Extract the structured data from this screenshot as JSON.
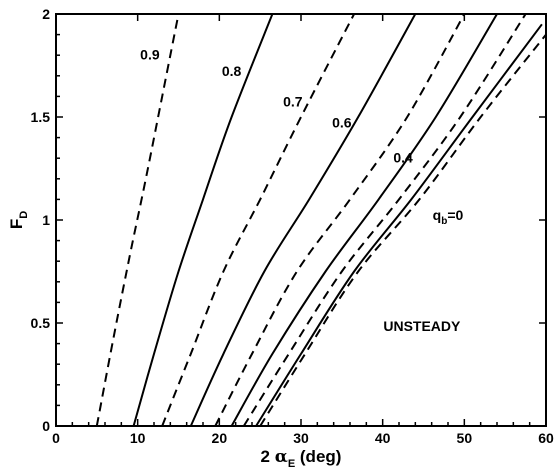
{
  "chart_data": {
    "type": "line",
    "title": "",
    "xlabel": {
      "prefix": "2 ",
      "symbol": "α",
      "subscript": "E",
      "suffix": " (deg)"
    },
    "ylabel": {
      "main": "F",
      "subscript": "D"
    },
    "xlim": [
      0,
      60
    ],
    "ylim": [
      0,
      2
    ],
    "xticks": [
      0,
      10,
      20,
      30,
      40,
      50,
      60
    ],
    "yticks": [
      {
        "value": 0,
        "label": "0"
      },
      {
        "value": 0.5,
        "label": "0.5"
      },
      {
        "value": 1,
        "label": "1"
      },
      {
        "value": 1.5,
        "label": "1.5"
      },
      {
        "value": 2,
        "label": "2"
      }
    ],
    "grid": false,
    "region_label": "UNSTEADY",
    "curve_labels": [
      {
        "text": "0.9",
        "x": 11.5,
        "y": 1.78
      },
      {
        "text": "0.8",
        "x": 21.5,
        "y": 1.7
      },
      {
        "text": "0.7",
        "x": 29.0,
        "y": 1.55
      },
      {
        "text": "0.6",
        "x": 35.0,
        "y": 1.45
      },
      {
        "text": "0.4",
        "x": 42.5,
        "y": 1.28
      },
      {
        "text": "q",
        "sub": "b",
        "suffix": "=0",
        "x": 48.0,
        "y": 1.0
      }
    ],
    "series": [
      {
        "style": "dashed",
        "x": [
          5.0,
          7.0,
          9.0,
          11.0,
          13.0,
          15.0
        ],
        "y": [
          0,
          0.42,
          0.82,
          1.2,
          1.6,
          2.0
        ]
      },
      {
        "style": "solid",
        "x": [
          9.5,
          12.0,
          15.0,
          18.0,
          21.5,
          26.5
        ],
        "y": [
          0,
          0.35,
          0.75,
          1.1,
          1.5,
          2.0
        ]
      },
      {
        "style": "dashed",
        "x": [
          13.0,
          16.5,
          20.5,
          25.0,
          30.0,
          36.5
        ],
        "y": [
          0,
          0.35,
          0.75,
          1.1,
          1.5,
          2.0
        ]
      },
      {
        "style": "solid",
        "x": [
          16.5,
          20.5,
          25.5,
          31.0,
          37.0,
          44.0
        ],
        "y": [
          0,
          0.35,
          0.75,
          1.1,
          1.5,
          2.0
        ]
      },
      {
        "style": "dashed",
        "x": [
          19.5,
          24.0,
          29.5,
          36.0,
          43.0,
          50.0
        ],
        "y": [
          0,
          0.35,
          0.75,
          1.1,
          1.5,
          2.0
        ]
      },
      {
        "style": "solid",
        "x": [
          21.5,
          26.5,
          33.0,
          39.5,
          46.5,
          54.0
        ],
        "y": [
          0,
          0.35,
          0.75,
          1.1,
          1.5,
          2.0
        ]
      },
      {
        "style": "dashed",
        "x": [
          23.0,
          28.5,
          35.0,
          42.0,
          49.5,
          57.5
        ],
        "y": [
          0,
          0.35,
          0.75,
          1.1,
          1.5,
          2.0
        ]
      },
      {
        "style": "solid",
        "x": [
          24.5,
          30.0,
          36.5,
          43.5,
          51.0,
          59.5
        ],
        "y": [
          0,
          0.35,
          0.75,
          1.1,
          1.5,
          1.95
        ]
      },
      {
        "style": "dashed",
        "x": [
          25.0,
          30.5,
          37.0,
          44.5,
          52.0,
          60.0
        ],
        "y": [
          0,
          0.35,
          0.75,
          1.1,
          1.5,
          1.9
        ]
      }
    ]
  }
}
